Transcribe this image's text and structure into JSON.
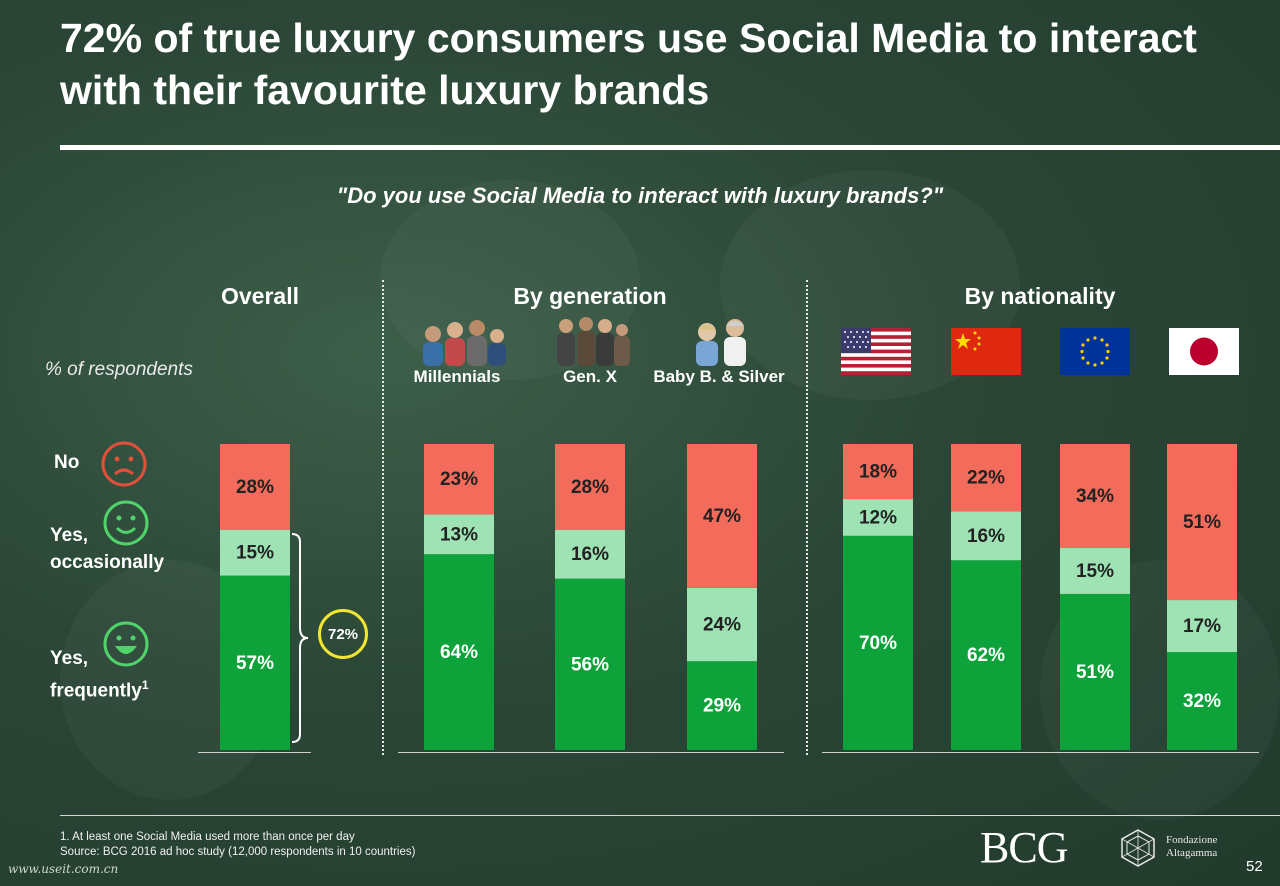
{
  "title": "72% of true luxury consumers use Social Media to interact with their favourite luxury brands",
  "subtitle": "\"Do you use Social Media to interact with luxury brands?\"",
  "sections": {
    "overall": "Overall",
    "generation": "By generation",
    "nationality": "By nationality"
  },
  "y_label": "% of respondents",
  "legend": {
    "no": "No",
    "yes_occ_line1": "Yes,",
    "yes_occ_line2": "occasionally",
    "yes_freq_line1": "Yes,",
    "yes_freq_line2": "frequently",
    "yes_freq_sup": "1"
  },
  "total_yes": "72%",
  "generation_labels": [
    "Millennials",
    "Gen. X",
    "Baby B. & Silver"
  ],
  "flag_icons": [
    "usa-flag-icon",
    "china-flag-icon",
    "eu-flag-icon",
    "japan-flag-icon"
  ],
  "colors": {
    "no": "#f26b5b",
    "occasionally": "#9fe3b5",
    "frequently": "#0ea23a",
    "highlight": "#f2e533"
  },
  "chart_data": {
    "type": "bar",
    "stacked": true,
    "y_unit": "%",
    "ylim": [
      0,
      100
    ],
    "categories": [
      "Overall",
      "Millennials",
      "Gen. X",
      "Baby B. & Silver",
      "USA",
      "China",
      "EU",
      "Japan"
    ],
    "series": [
      {
        "name": "Yes, frequently",
        "values": [
          57,
          64,
          56,
          29,
          70,
          62,
          51,
          32
        ]
      },
      {
        "name": "Yes, occasionally",
        "values": [
          15,
          13,
          16,
          24,
          12,
          16,
          15,
          17
        ]
      },
      {
        "name": "No",
        "values": [
          28,
          23,
          28,
          47,
          18,
          22,
          34,
          51
        ]
      }
    ]
  },
  "footnote": "1. At least one Social Media used more than once per day",
  "source": "Source: BCG 2016 ad hoc study (12,000 respondents in 10 countries)",
  "logo_bcg": "BCG",
  "logo_fondazione_line1": "Fondazione",
  "logo_fondazione_line2": "Altagamma",
  "watermark": "www.useit.com.cn",
  "page_number": "52"
}
